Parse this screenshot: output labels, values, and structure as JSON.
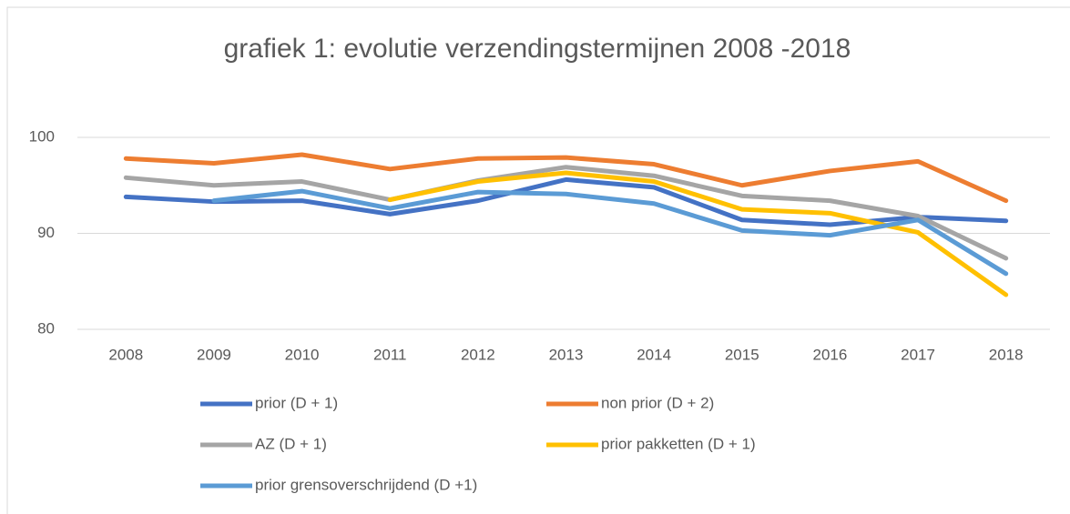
{
  "chart_data": {
    "type": "line",
    "title": "grafiek 1: evolutie verzendingstermijnen 2008 -2018",
    "categories": [
      "2008",
      "2009",
      "2010",
      "2011",
      "2012",
      "2013",
      "2014",
      "2015",
      "2016",
      "2017",
      "2018"
    ],
    "series": [
      {
        "name": "prior (D + 1)",
        "color": "#4472c4",
        "values": [
          93.8,
          93.3,
          93.4,
          92.0,
          93.4,
          95.6,
          94.8,
          91.4,
          90.9,
          91.7,
          91.3
        ]
      },
      {
        "name": "non prior (D + 2)",
        "color": "#ed7d31",
        "values": [
          97.8,
          97.3,
          98.2,
          96.7,
          97.8,
          97.9,
          97.2,
          95.0,
          96.5,
          97.5,
          93.4
        ]
      },
      {
        "name": "AZ (D + 1)",
        "color": "#a5a5a5",
        "values": [
          95.8,
          95.0,
          95.4,
          93.5,
          95.5,
          96.9,
          96.0,
          93.9,
          93.4,
          91.8,
          87.4
        ]
      },
      {
        "name": "prior pakketten (D + 1)",
        "color": "#ffc000",
        "values": [
          null,
          null,
          null,
          93.5,
          95.4,
          96.3,
          95.4,
          92.5,
          92.1,
          90.1,
          83.6
        ]
      },
      {
        "name": "prior grensoverschrijdend (D +1)",
        "color": "#5b9bd5",
        "values": [
          null,
          93.4,
          94.4,
          92.6,
          94.3,
          94.1,
          93.1,
          90.3,
          89.8,
          91.4,
          85.8
        ]
      }
    ],
    "ylim": [
      80,
      100
    ],
    "yticks": [
      80,
      90,
      100
    ],
    "grid": true
  }
}
